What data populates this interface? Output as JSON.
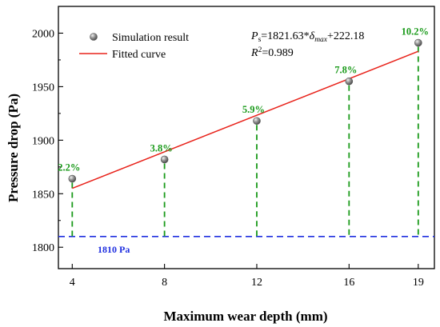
{
  "chart_data": {
    "type": "scatter",
    "xlabel": "Maximum wear depth (mm)",
    "ylabel": "Pressure drop (Pa)",
    "xlim": [
      3.4,
      19.7
    ],
    "ylim": [
      1780,
      2025
    ],
    "x_ticks": [
      4,
      8,
      12,
      16,
      19
    ],
    "y_ticks": [
      1800,
      1850,
      1900,
      1950,
      2000
    ],
    "x_tick_labels": [
      "4",
      "8",
      "12",
      "16",
      "19"
    ],
    "y_tick_labels": [
      "1800",
      "1850",
      "1900",
      "1950",
      "2000"
    ],
    "grid": false,
    "legend_position": "top-left",
    "series": [
      {
        "name": "Simulation result",
        "kind": "scatter",
        "x": [
          4,
          8,
          12,
          16,
          19
        ],
        "y": [
          1864,
          1882,
          1918,
          1955,
          1991
        ],
        "color": "#808080"
      },
      {
        "name": "Fitted curve",
        "kind": "line",
        "x": [
          4,
          19
        ],
        "y": [
          1855,
          1983
        ],
        "color": "#e8231b"
      }
    ],
    "drop_lines": {
      "color": "#1a9a1a",
      "to_y": 1810
    },
    "point_labels": [
      "2.2%",
      "3.8%",
      "5.9%",
      "7.8%",
      "10.2%"
    ],
    "point_label_color": "#1a9a1a",
    "reference_line": {
      "y": 1810,
      "label": "1810 Pa",
      "color": "#1f2fe0"
    },
    "annotations": {
      "equation": {
        "lhs": "P",
        "lhs_sub": "s",
        "mid": "=1821.63*",
        "var": "δ",
        "var_sub": "max",
        "rhs": "+222.18"
      },
      "r2": {
        "sym": "R",
        "sup": "2",
        "value": "=0.989"
      }
    }
  }
}
